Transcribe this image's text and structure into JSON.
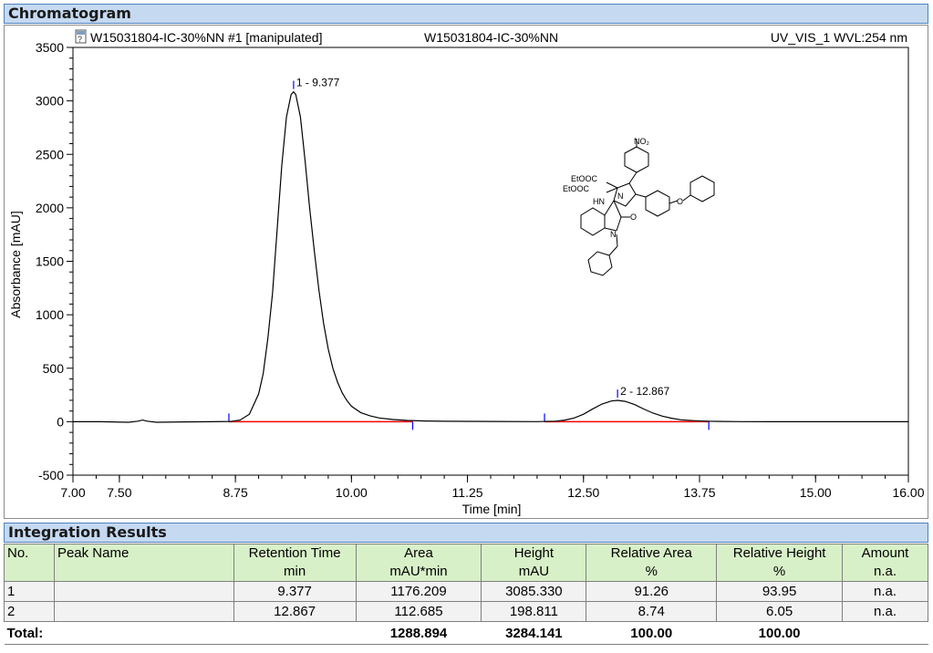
{
  "chromatogram": {
    "section_title": "Chromatogram",
    "header_left": "W15031804-IC-30%NN #1 [manipulated]",
    "header_center": "W15031804-IC-30%NN",
    "header_right": "UV_VIS_1 WVL:254 nm",
    "molecule_labels": {
      "no2": "NO₂",
      "etooc1": "EtOOC",
      "etooc2": "EtOOC",
      "hn": "HN",
      "n1": "N",
      "n2": "N",
      "o_ether": "O",
      "o_carbonyl": "O"
    }
  },
  "chart_data": {
    "type": "line",
    "xlabel": "Time [min]",
    "ylabel": "Absorbance [mAU]",
    "xlim": [
      7.0,
      16.0
    ],
    "ylim": [
      -500,
      3500
    ],
    "x_ticks": [
      "7.00",
      "7.50",
      "8.75",
      "10.00",
      "11.25",
      "12.50",
      "13.75",
      "15.00",
      "16.00"
    ],
    "x_tick_values": [
      7.0,
      7.5,
      8.75,
      10.0,
      11.25,
      12.5,
      13.75,
      15.0,
      16.0
    ],
    "y_ticks": [
      "-500",
      "0",
      "500",
      "1000",
      "1500",
      "2000",
      "2500",
      "3000",
      "3500"
    ],
    "y_tick_values": [
      -500,
      0,
      500,
      1000,
      1500,
      2000,
      2500,
      3000,
      3500
    ],
    "baseline_color": "#ff0000",
    "trace_color": "#000000",
    "marker_color": "#0000ff",
    "trace": {
      "x": [
        7.0,
        7.3,
        7.6,
        7.7,
        7.75,
        7.8,
        7.9,
        8.2,
        8.5,
        8.7,
        8.8,
        8.9,
        9.0,
        9.05,
        9.1,
        9.15,
        9.2,
        9.25,
        9.3,
        9.35,
        9.377,
        9.4,
        9.45,
        9.5,
        9.55,
        9.6,
        9.65,
        9.7,
        9.75,
        9.8,
        9.85,
        9.9,
        9.95,
        10.0,
        10.1,
        10.2,
        10.3,
        10.45,
        10.6,
        10.8,
        11.0,
        11.5,
        12.0,
        12.2,
        12.3,
        12.4,
        12.5,
        12.6,
        12.7,
        12.8,
        12.867,
        12.95,
        13.05,
        13.15,
        13.25,
        13.35,
        13.45,
        13.55,
        13.7,
        13.85,
        14.0,
        14.2,
        14.5,
        15.0,
        15.5,
        16.0
      ],
      "y": [
        0,
        0,
        -5,
        5,
        15,
        5,
        -5,
        -2,
        0,
        2,
        15,
        70,
        260,
        450,
        780,
        1200,
        1800,
        2400,
        2850,
        3060,
        3085,
        3060,
        2850,
        2450,
        2000,
        1600,
        1230,
        920,
        680,
        500,
        370,
        270,
        200,
        145,
        85,
        55,
        35,
        20,
        12,
        7,
        4,
        2,
        1,
        5,
        15,
        35,
        70,
        120,
        165,
        193,
        199,
        190,
        160,
        118,
        80,
        52,
        32,
        18,
        9,
        4,
        2,
        1,
        0,
        0,
        0,
        0
      ]
    },
    "peaks": [
      {
        "label": "1 - 9.377",
        "x": 9.377,
        "y": 3085.33
      },
      {
        "label": "2 - 12.867",
        "x": 12.867,
        "y": 198.811
      }
    ],
    "baselines": [
      {
        "x_start": 8.68,
        "x_end": 10.66,
        "y": 0
      },
      {
        "x_start": 12.08,
        "x_end": 13.85,
        "y": 0
      }
    ]
  },
  "integration": {
    "section_title": "Integration Results",
    "columns": [
      {
        "name": "No.",
        "unit": ""
      },
      {
        "name": "Peak Name",
        "unit": ""
      },
      {
        "name": "Retention Time",
        "unit": "min"
      },
      {
        "name": "Area",
        "unit": "mAU*min"
      },
      {
        "name": "Height",
        "unit": "mAU"
      },
      {
        "name": "Relative Area",
        "unit": "%"
      },
      {
        "name": "Relative Height",
        "unit": "%"
      },
      {
        "name": "Amount",
        "unit": "n.a."
      }
    ],
    "rows": [
      {
        "no": "1",
        "peak_name": "",
        "retention_time": "9.377",
        "area": "1176.209",
        "height": "3085.330",
        "rel_area": "91.26",
        "rel_height": "93.95",
        "amount": "n.a."
      },
      {
        "no": "2",
        "peak_name": "",
        "retention_time": "12.867",
        "area": "112.685",
        "height": "198.811",
        "rel_area": "8.74",
        "rel_height": "6.05",
        "amount": "n.a."
      }
    ],
    "total": {
      "label": "Total:",
      "area": "1288.894",
      "height": "3284.141",
      "rel_area": "100.00",
      "rel_height": "100.00"
    }
  }
}
